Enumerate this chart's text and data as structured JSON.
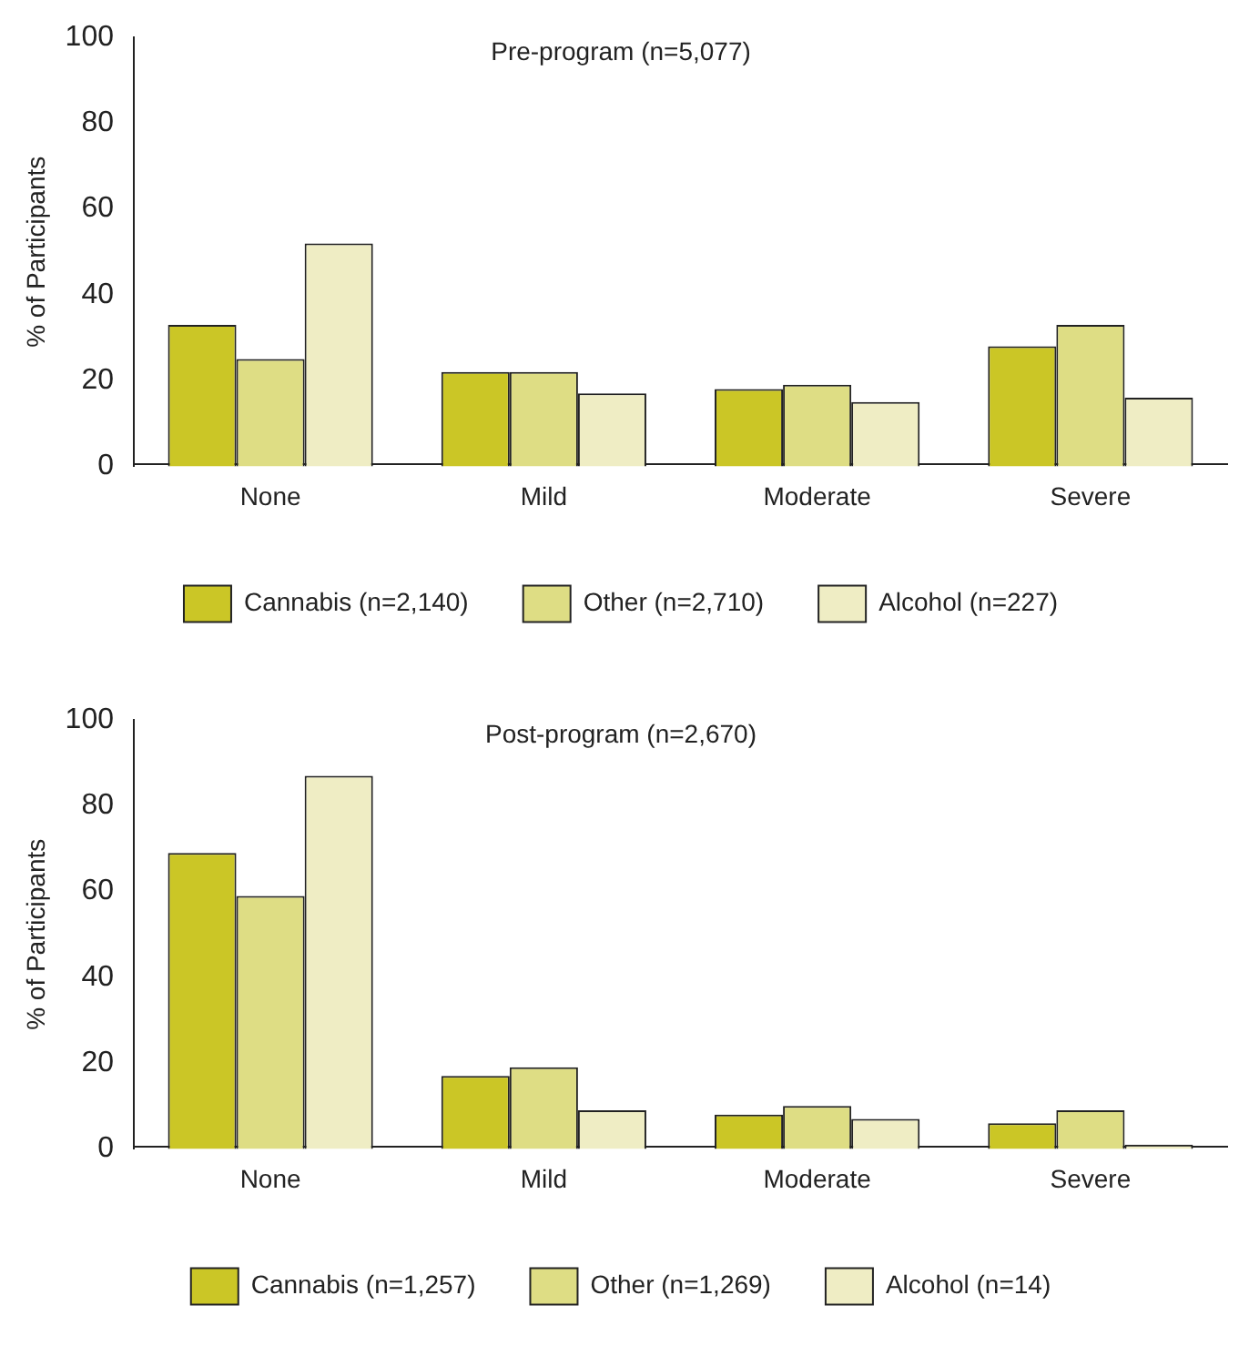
{
  "chart_data": [
    {
      "type": "bar",
      "title": "Pre-program (n=5,077)",
      "ylabel": "% of Participants",
      "categories": [
        "None",
        "Mild",
        "Moderate",
        "Severe"
      ],
      "series": [
        {
          "name": "Cannabis (n=2,140)",
          "color": "#cbc626",
          "values": [
            33,
            22,
            18,
            28
          ]
        },
        {
          "name": "Other (n=2,710)",
          "color": "#dedd84",
          "values": [
            25,
            22,
            19,
            33
          ]
        },
        {
          "name": "Alcohol (n=227)",
          "color": "#efedc4",
          "values": [
            52,
            17,
            15,
            16
          ]
        }
      ],
      "ylim": [
        0,
        100
      ],
      "yticks": [
        0,
        20,
        40,
        60,
        80,
        100
      ],
      "grid": false,
      "legend": "bottom"
    },
    {
      "type": "bar",
      "title": "Post-program (n=2,670)",
      "ylabel": "% of Participants",
      "categories": [
        "None",
        "Mild",
        "Moderate",
        "Severe"
      ],
      "series": [
        {
          "name": "Cannabis (n=1,257)",
          "color": "#cbc626",
          "values": [
            69,
            17,
            8,
            6
          ]
        },
        {
          "name": "Other (n=1,269)",
          "color": "#dedd84",
          "values": [
            59,
            19,
            10,
            9
          ]
        },
        {
          "name": "Alcohol (n=14)",
          "color": "#efedc4",
          "values": [
            87,
            9,
            7,
            1
          ]
        }
      ],
      "ylim": [
        0,
        100
      ],
      "yticks": [
        0,
        20,
        40,
        60,
        80,
        100
      ],
      "grid": false,
      "legend": "bottom"
    }
  ]
}
